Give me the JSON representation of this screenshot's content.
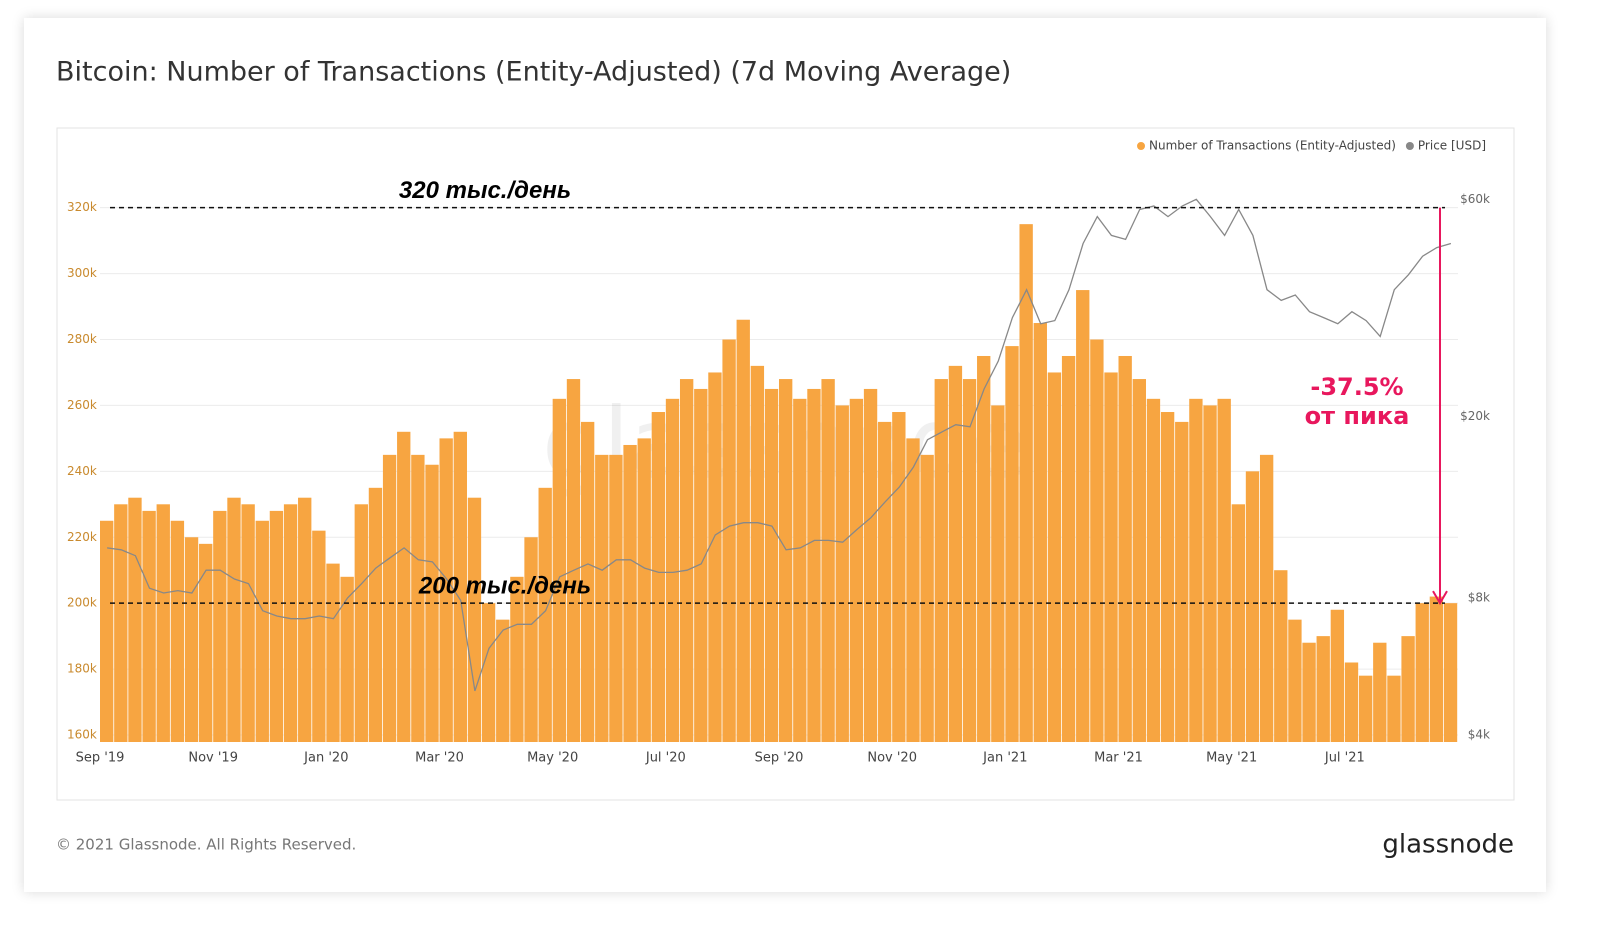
{
  "title": "Bitcoin: Number of Transactions (Entity-Adjusted) (7d Moving Average)",
  "footer": "© 2021 Glassnode. All Rights Reserved.",
  "brand": "glassnode",
  "chart_data": {
    "type": "bar",
    "watermark": "glassnode",
    "categories": [
      "Sep '19",
      null,
      null,
      null,
      null,
      null,
      null,
      null,
      "Nov '19",
      null,
      null,
      null,
      null,
      null,
      null,
      null,
      "Jan '20",
      null,
      null,
      null,
      null,
      null,
      null,
      null,
      "Mar '20",
      null,
      null,
      null,
      null,
      null,
      null,
      null,
      "May '20",
      null,
      null,
      null,
      null,
      null,
      null,
      null,
      "Jul '20",
      null,
      null,
      null,
      null,
      null,
      null,
      null,
      "Sep '20",
      null,
      null,
      null,
      null,
      null,
      null,
      null,
      "Nov '20",
      null,
      null,
      null,
      null,
      null,
      null,
      null,
      "Jan '21",
      null,
      null,
      null,
      null,
      null,
      null,
      null,
      "Mar '21",
      null,
      null,
      null,
      null,
      null,
      null,
      null,
      "May '21",
      null,
      null,
      null,
      null,
      null,
      null,
      null,
      "Jul '21",
      null,
      null,
      null,
      null,
      null,
      null,
      null
    ],
    "series": [
      {
        "name": "Number of Transactions (Entity-Adjusted)",
        "color": "#f7a541",
        "type": "bar",
        "values": [
          225000,
          230000,
          232000,
          228000,
          230000,
          225000,
          220000,
          218000,
          228000,
          232000,
          230000,
          225000,
          228000,
          230000,
          232000,
          222000,
          212000,
          208000,
          230000,
          235000,
          245000,
          252000,
          245000,
          242000,
          250000,
          252000,
          232000,
          200000,
          195000,
          208000,
          220000,
          235000,
          262000,
          268000,
          255000,
          245000,
          245000,
          248000,
          250000,
          258000,
          262000,
          268000,
          265000,
          270000,
          280000,
          286000,
          272000,
          265000,
          268000,
          262000,
          265000,
          268000,
          260000,
          262000,
          265000,
          255000,
          258000,
          250000,
          245000,
          268000,
          272000,
          268000,
          275000,
          260000,
          278000,
          315000,
          285000,
          270000,
          275000,
          295000,
          280000,
          270000,
          275000,
          268000,
          262000,
          258000,
          255000,
          262000,
          260000,
          262000,
          230000,
          240000,
          245000,
          210000,
          195000,
          188000,
          190000,
          198000,
          182000,
          178000,
          188000,
          178000,
          190000,
          200000,
          202000,
          200000
        ]
      },
      {
        "name": "Price [USD]",
        "color": "#888888",
        "type": "line",
        "axis": "y2",
        "values": [
          10300,
          10200,
          9900,
          8400,
          8200,
          8300,
          8200,
          9200,
          9200,
          8800,
          8600,
          7500,
          7300,
          7200,
          7200,
          7300,
          7200,
          8000,
          8600,
          9300,
          9800,
          10300,
          9700,
          9600,
          8800,
          7900,
          5000,
          6200,
          6800,
          7000,
          7000,
          7500,
          8900,
          9200,
          9500,
          9200,
          9700,
          9700,
          9300,
          9100,
          9100,
          9200,
          9500,
          11000,
          11500,
          11700,
          11700,
          11500,
          10200,
          10300,
          10700,
          10700,
          10600,
          11300,
          12000,
          13000,
          14000,
          15500,
          17800,
          18500,
          19200,
          19000,
          23000,
          26500,
          33000,
          38000,
          32000,
          32500,
          38000,
          48000,
          55000,
          50000,
          49000,
          57000,
          58000,
          55000,
          58000,
          60000,
          55000,
          50000,
          57000,
          50000,
          38000,
          36000,
          37000,
          34000,
          33000,
          32000,
          34000,
          32500,
          30000,
          38000,
          41000,
          45000,
          47000,
          48000
        ]
      }
    ],
    "ylim": [
      160000,
      337500
    ],
    "yticks": [
      {
        "value": 160000,
        "label": "160k"
      },
      {
        "value": 180000,
        "label": "180k"
      },
      {
        "value": 200000,
        "label": "200k"
      },
      {
        "value": 220000,
        "label": "220k"
      },
      {
        "value": 240000,
        "label": "240k"
      },
      {
        "value": 260000,
        "label": "260k"
      },
      {
        "value": 280000,
        "label": "280k"
      },
      {
        "value": 300000,
        "label": "300k"
      },
      {
        "value": 320000,
        "label": "320k"
      }
    ],
    "y2lim": [
      4000,
      77000
    ],
    "y2_log": true,
    "y2ticks": [
      {
        "value": 4000,
        "label": "$4k"
      },
      {
        "value": 8000,
        "label": "$8k"
      },
      {
        "value": 20000,
        "label": "$20k"
      },
      {
        "value": 60000,
        "label": "$60k"
      }
    ],
    "grid": true,
    "legend": "top-right",
    "reference_lines": [
      {
        "value": 320000,
        "label": "320 тыс./день"
      },
      {
        "value": 200000,
        "label": "200 тыс./день"
      }
    ],
    "change_annotation": {
      "lines": [
        "-37.5%",
        "от пика"
      ],
      "color": "#e8175d"
    }
  }
}
